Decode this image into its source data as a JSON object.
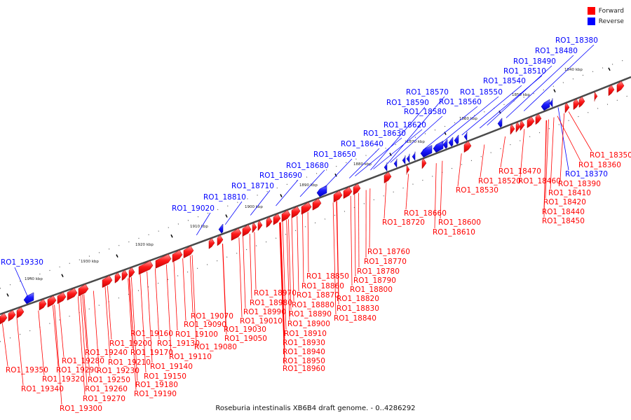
{
  "caption": "Roseburia intestinalis XB6B4 draft genome. - 0..4286292",
  "legend": {
    "forward": {
      "label": "Forward",
      "color": "#ff0000"
    },
    "reverse": {
      "label": "Reverse",
      "color": "#0000ff"
    }
  },
  "scale": {
    "ticks": [
      "1840 kbp",
      "1850 kbp",
      "1860 kbp",
      "1870 kbp",
      "1880 kbp",
      "1890 kbp",
      "1900 kbp",
      "1910 kbp",
      "1920 kbp",
      "1930 kbp",
      "1940 kbp"
    ]
  },
  "genes": {
    "reverse": [
      "RO1_18380",
      "RO1_18480",
      "RO1_18490",
      "RO1_18510",
      "RO1_18540",
      "RO1_18550",
      "RO1_18560",
      "RO1_18570",
      "RO1_18590",
      "RO1_18580",
      "RO1_18620",
      "RO1_18630",
      "RO1_18640",
      "RO1_18650",
      "RO1_18680",
      "RO1_18690",
      "RO1_18710",
      "RO1_18810",
      "RO1_19020",
      "RO1_19330",
      "RO1_18370"
    ],
    "forward": [
      "RO1_18350",
      "RO1_18360",
      "RO1_18390",
      "RO1_18410",
      "RO1_18420",
      "RO1_18440",
      "RO1_18450",
      "RO1_18470",
      "RO1_18460",
      "RO1_18520",
      "RO1_18530",
      "RO1_18660",
      "RO1_18720",
      "RO1_18600",
      "RO1_18610",
      "RO1_18760",
      "RO1_18770",
      "RO1_18780",
      "RO1_18790",
      "RO1_18800",
      "RO1_18820",
      "RO1_18830",
      "RO1_18840",
      "RO1_18850",
      "RO1_18860",
      "RO1_18870",
      "RO1_18880",
      "RO1_18890",
      "RO1_18900",
      "RO1_18910",
      "RO1_18930",
      "RO1_18940",
      "RO1_18950",
      "RO1_18960",
      "RO1_18970",
      "RO1_18980",
      "RO1_18990",
      "RO1_19010",
      "RO1_19030",
      "RO1_19050",
      "RO1_19070",
      "RO1_19080",
      "RO1_19090",
      "RO1_19100",
      "RO1_19110",
      "RO1_19130",
      "RO1_19140",
      "RO1_19150",
      "RO1_19160",
      "RO1_19170",
      "RO1_19180",
      "RO1_19190",
      "RO1_19200",
      "RO1_19210",
      "RO1_19230",
      "RO1_19240",
      "RO1_19250",
      "RO1_19260",
      "RO1_19270",
      "RO1_19280",
      "RO1_19290",
      "RO1_19300",
      "RO1_19320",
      "RO1_19340",
      "RO1_19350"
    ]
  }
}
